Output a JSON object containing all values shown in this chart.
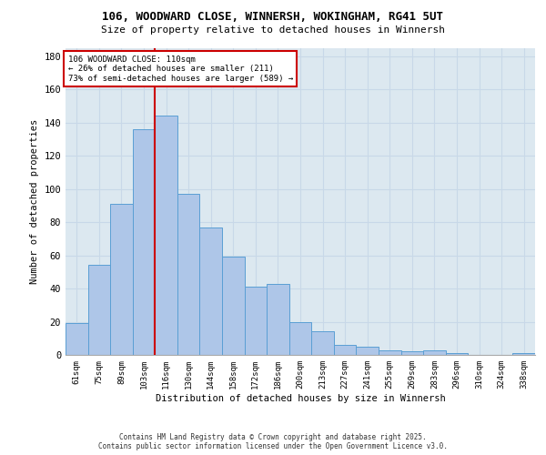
{
  "title_line1": "106, WOODWARD CLOSE, WINNERSH, WOKINGHAM, RG41 5UT",
  "title_line2": "Size of property relative to detached houses in Winnersh",
  "xlabel": "Distribution of detached houses by size in Winnersh",
  "ylabel": "Number of detached properties",
  "bar_labels": [
    "61sqm",
    "75sqm",
    "89sqm",
    "103sqm",
    "116sqm",
    "130sqm",
    "144sqm",
    "158sqm",
    "172sqm",
    "186sqm",
    "200sqm",
    "213sqm",
    "227sqm",
    "241sqm",
    "255sqm",
    "269sqm",
    "283sqm",
    "296sqm",
    "310sqm",
    "324sqm",
    "338sqm"
  ],
  "bar_values": [
    19,
    54,
    91,
    136,
    144,
    97,
    77,
    59,
    41,
    43,
    20,
    14,
    6,
    5,
    3,
    2,
    3,
    1,
    0,
    0,
    1
  ],
  "bar_color": "#aec6e8",
  "bar_edge_color": "#5a9fd4",
  "vline_x": 3.5,
  "vline_color": "#cc0000",
  "annotation_line1": "106 WOODWARD CLOSE: 110sqm",
  "annotation_line2": "← 26% of detached houses are smaller (211)",
  "annotation_line3": "73% of semi-detached houses are larger (589) →",
  "annotation_box_color": "#cc0000",
  "ylim": [
    0,
    185
  ],
  "yticks": [
    0,
    20,
    40,
    60,
    80,
    100,
    120,
    140,
    160,
    180
  ],
  "grid_color": "#c8d8e8",
  "background_color": "#dce8f0",
  "footer_line1": "Contains HM Land Registry data © Crown copyright and database right 2025.",
  "footer_line2": "Contains public sector information licensed under the Open Government Licence v3.0."
}
